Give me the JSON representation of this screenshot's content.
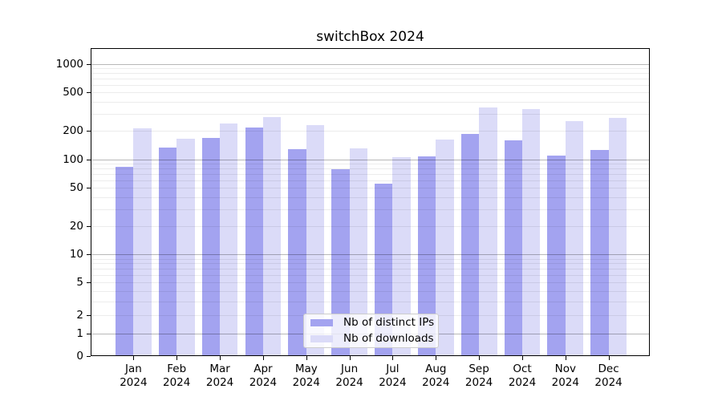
{
  "title": "switchBox 2024",
  "chart_data": {
    "type": "bar",
    "title": "switchBox 2024",
    "categories": [
      "Jan 2024",
      "Feb 2024",
      "Mar 2024",
      "Apr 2024",
      "May 2024",
      "Jun 2024",
      "Jul 2024",
      "Aug 2024",
      "Sep 2024",
      "Oct 2024",
      "Nov 2024",
      "Dec 2024"
    ],
    "series": [
      {
        "name": "Nb of distinct IPs",
        "color": "#a3a3f0",
        "values": [
          84,
          132,
          166,
          213,
          127,
          79,
          56,
          108,
          185,
          159,
          109,
          124
        ]
      },
      {
        "name": "Nb of downloads",
        "color": "#dbdbf8",
        "values": [
          210,
          165,
          237,
          274,
          230,
          130,
          106,
          162,
          346,
          333,
          250,
          273
        ]
      }
    ],
    "xlabel": "",
    "ylabel": "",
    "yscale": "symlog",
    "yticks": [
      0,
      1,
      2,
      5,
      10,
      20,
      50,
      100,
      200,
      500,
      1000
    ],
    "ylim": [
      0,
      1450
    ],
    "grid": true,
    "grid_over_bars": true,
    "legend_position": "lower center inside",
    "bar_group": "side-by-side"
  },
  "legend": {
    "items": [
      {
        "label": "Nb of distinct IPs"
      },
      {
        "label": "Nb of downloads"
      }
    ]
  }
}
